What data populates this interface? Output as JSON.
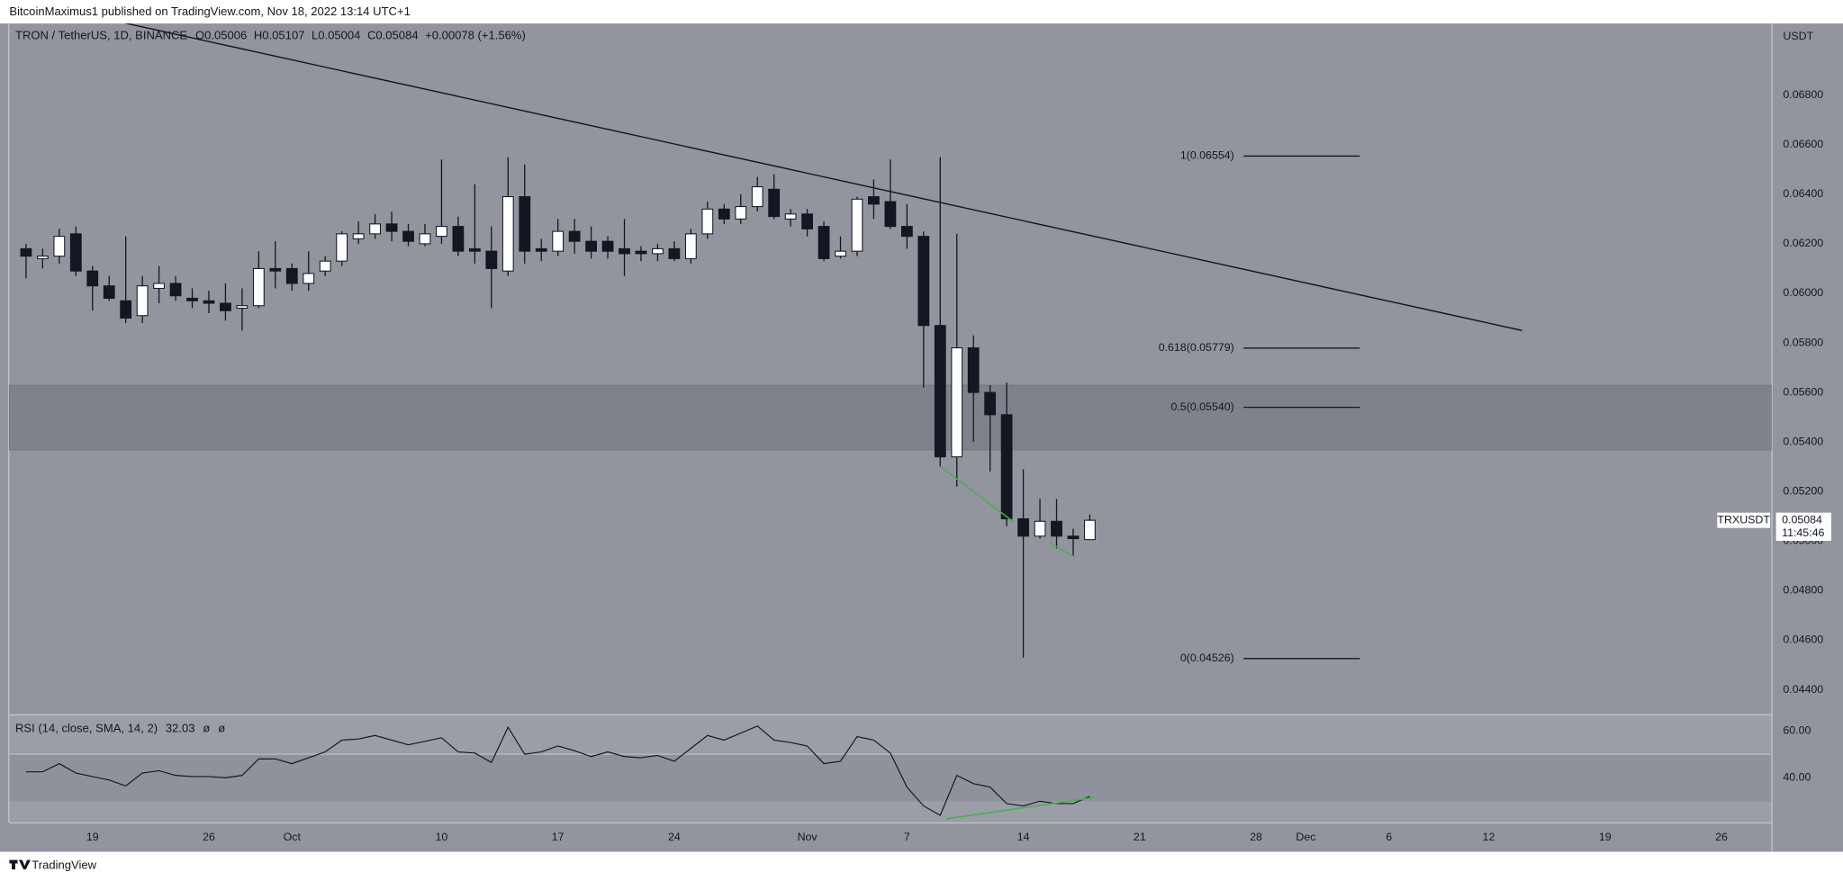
{
  "header": {
    "publisher": "BitcoinMaximus1 published on TradingView.com, Nov 18, 2022 13:14 UTC+1",
    "symbol": "TRON / TetherUS, 1D, BINANCE",
    "ohlc": [
      {
        "key": "O",
        "value": "0.05006"
      },
      {
        "key": "H",
        "value": "0.05107"
      },
      {
        "key": "L",
        "value": "0.05004"
      },
      {
        "key": "C",
        "value": "0.05084"
      }
    ],
    "change": "+0.00078 (+1.56%)",
    "currency": "USDT",
    "footer": "TradingView"
  },
  "chart_data": [
    {
      "type": "candlestick",
      "x": [
        "2022-09-15",
        "2022-09-16",
        "2022-09-17",
        "2022-09-18",
        "2022-09-19",
        "2022-09-20",
        "2022-09-21",
        "2022-09-22",
        "2022-09-23",
        "2022-09-24",
        "2022-09-25",
        "2022-09-26",
        "2022-09-27",
        "2022-09-28",
        "2022-09-29",
        "2022-09-30",
        "2022-10-01",
        "2022-10-02",
        "2022-10-03",
        "2022-10-04",
        "2022-10-05",
        "2022-10-06",
        "2022-10-07",
        "2022-10-08",
        "2022-10-09",
        "2022-10-10",
        "2022-10-11",
        "2022-10-12",
        "2022-10-13",
        "2022-10-14",
        "2022-10-15",
        "2022-10-16",
        "2022-10-17",
        "2022-10-18",
        "2022-10-19",
        "2022-10-20",
        "2022-10-21",
        "2022-10-22",
        "2022-10-23",
        "2022-10-24",
        "2022-10-25",
        "2022-10-26",
        "2022-10-27",
        "2022-10-28",
        "2022-10-29",
        "2022-10-30",
        "2022-10-31",
        "2022-11-01",
        "2022-11-02",
        "2022-11-03",
        "2022-11-04",
        "2022-11-05",
        "2022-11-06",
        "2022-11-07",
        "2022-11-08",
        "2022-11-09",
        "2022-11-10",
        "2022-11-11",
        "2022-11-12",
        "2022-11-13",
        "2022-11-14",
        "2022-11-15",
        "2022-11-16",
        "2022-11-17",
        "2022-11-18"
      ],
      "open": [
        0.0618,
        0.0614,
        0.0615,
        0.0624,
        0.0609,
        0.0603,
        0.0597,
        0.0591,
        0.0602,
        0.0604,
        0.0598,
        0.0597,
        0.0596,
        0.0594,
        0.0595,
        0.061,
        0.061,
        0.0604,
        0.0609,
        0.0613,
        0.0622,
        0.0624,
        0.0628,
        0.0625,
        0.062,
        0.0623,
        0.0627,
        0.0618,
        0.0617,
        0.0609,
        0.0639,
        0.0618,
        0.0617,
        0.0625,
        0.0621,
        0.0621,
        0.0618,
        0.0617,
        0.0616,
        0.0618,
        0.0614,
        0.0624,
        0.0634,
        0.063,
        0.0635,
        0.0642,
        0.063,
        0.0632,
        0.0627,
        0.0615,
        0.0617,
        0.0639,
        0.0637,
        0.0627,
        0.0623,
        0.0587,
        0.0534,
        0.0578,
        0.056,
        0.0551,
        0.0509,
        0.0502,
        0.0508,
        0.0502,
        0.05006
      ],
      "high": [
        0.062,
        0.0618,
        0.0626,
        0.0627,
        0.0611,
        0.0607,
        0.0623,
        0.0607,
        0.0611,
        0.0607,
        0.0602,
        0.0601,
        0.0604,
        0.0602,
        0.0617,
        0.0621,
        0.0612,
        0.0617,
        0.0615,
        0.0625,
        0.0629,
        0.0632,
        0.0633,
        0.0628,
        0.0628,
        0.0654,
        0.0631,
        0.0644,
        0.0627,
        0.0655,
        0.0652,
        0.0622,
        0.063,
        0.063,
        0.0627,
        0.0623,
        0.063,
        0.0619,
        0.062,
        0.0621,
        0.0626,
        0.0637,
        0.0636,
        0.064,
        0.0647,
        0.0648,
        0.0634,
        0.0634,
        0.0629,
        0.0623,
        0.0639,
        0.0646,
        0.0654,
        0.0636,
        0.0625,
        0.0655,
        0.0624,
        0.0583,
        0.0563,
        0.0564,
        0.0529,
        0.0517,
        0.0517,
        0.0505,
        0.05107
      ],
      "low": [
        0.0606,
        0.061,
        0.0612,
        0.0607,
        0.0593,
        0.0597,
        0.0588,
        0.0588,
        0.0596,
        0.0597,
        0.0594,
        0.0592,
        0.0589,
        0.0585,
        0.0594,
        0.0602,
        0.0601,
        0.0601,
        0.0607,
        0.0611,
        0.062,
        0.0622,
        0.0621,
        0.0619,
        0.0619,
        0.062,
        0.0615,
        0.0612,
        0.0594,
        0.0607,
        0.0612,
        0.0613,
        0.0615,
        0.0616,
        0.0614,
        0.0614,
        0.0607,
        0.0613,
        0.0613,
        0.0613,
        0.0612,
        0.0622,
        0.0628,
        0.0628,
        0.0633,
        0.063,
        0.0627,
        0.0623,
        0.0613,
        0.0614,
        0.0615,
        0.063,
        0.0626,
        0.0618,
        0.0562,
        0.053,
        0.0522,
        0.054,
        0.0528,
        0.0506,
        0.0453,
        0.0501,
        0.0497,
        0.0494,
        0.05004
      ],
      "close": [
        0.0615,
        0.0615,
        0.0623,
        0.0609,
        0.0603,
        0.0598,
        0.059,
        0.0603,
        0.0604,
        0.0599,
        0.0597,
        0.0596,
        0.0593,
        0.0595,
        0.061,
        0.0609,
        0.0604,
        0.0608,
        0.0613,
        0.0624,
        0.0624,
        0.0628,
        0.0625,
        0.0621,
        0.0624,
        0.0627,
        0.0617,
        0.0617,
        0.061,
        0.0639,
        0.0617,
        0.0617,
        0.0625,
        0.0621,
        0.0617,
        0.0617,
        0.0616,
        0.0616,
        0.0618,
        0.0614,
        0.0624,
        0.0634,
        0.063,
        0.0635,
        0.0643,
        0.0631,
        0.0632,
        0.0626,
        0.0614,
        0.0617,
        0.0638,
        0.0636,
        0.0627,
        0.0623,
        0.0587,
        0.0534,
        0.0578,
        0.056,
        0.0551,
        0.0509,
        0.0502,
        0.0508,
        0.0502,
        0.0501,
        0.05084
      ],
      "up_color": "#ffffff",
      "down_color": "#131722",
      "xlim": [
        "2022-09-14",
        "2022-12-29"
      ],
      "xticks": [
        {
          "value": "2022-09-19",
          "label": "19"
        },
        {
          "value": "2022-09-26",
          "label": "26"
        },
        {
          "value": "2022-10-01",
          "label": "Oct"
        },
        {
          "value": "2022-10-10",
          "label": "10"
        },
        {
          "value": "2022-10-17",
          "label": "17"
        },
        {
          "value": "2022-10-24",
          "label": "24"
        },
        {
          "value": "2022-11-01",
          "label": "Nov"
        },
        {
          "value": "2022-11-07",
          "label": "7"
        },
        {
          "value": "2022-11-14",
          "label": "14"
        },
        {
          "value": "2022-11-21",
          "label": "21"
        },
        {
          "value": "2022-11-28",
          "label": "28"
        },
        {
          "value": "2022-12-01",
          "label": "Dec"
        },
        {
          "value": "2022-12-06",
          "label": "6"
        },
        {
          "value": "2022-12-12",
          "label": "12"
        },
        {
          "value": "2022-12-19",
          "label": "19"
        },
        {
          "value": "2022-12-26",
          "label": "26"
        }
      ],
      "ylim": [
        0.04301,
        0.07089
      ],
      "yticks": [
        {
          "value": 0.044,
          "label": "0.04400"
        },
        {
          "value": 0.046,
          "label": "0.04600"
        },
        {
          "value": 0.048,
          "label": "0.04800"
        },
        {
          "value": 0.05,
          "label": "0.05000"
        },
        {
          "value": 0.052,
          "label": "0.05200"
        },
        {
          "value": 0.054,
          "label": "0.05400"
        },
        {
          "value": 0.056,
          "label": "0.05600"
        },
        {
          "value": 0.058,
          "label": "0.05800"
        },
        {
          "value": 0.06,
          "label": "0.06000"
        },
        {
          "value": 0.062,
          "label": "0.06200"
        },
        {
          "value": 0.064,
          "label": "0.06400"
        },
        {
          "value": 0.066,
          "label": "0.06600"
        },
        {
          "value": 0.068,
          "label": "0.06800"
        }
      ],
      "trendline": {
        "x": [
          "2022-09-21",
          "2022-12-14"
        ],
        "y": [
          0.0709,
          0.0585
        ]
      },
      "zone": [
        0.05368,
        0.05629
      ],
      "fib_levels": [
        {
          "label": "1(0.06554)",
          "value": 0.06554
        },
        {
          "label": "0.618(0.05779)",
          "value": 0.05779
        },
        {
          "label": "0.5(0.05540)",
          "value": 0.0554
        },
        {
          "label": "0(0.04526)",
          "value": 0.04526
        }
      ],
      "last_price": {
        "name": "TRXUSDT",
        "value": 0.05084,
        "countdown": "11:45:46"
      }
    },
    {
      "type": "line",
      "title": "RSI (14, close, SMA, 14, 2)",
      "extras": [
        "ø",
        "ø"
      ],
      "color": "#131722",
      "values": [
        42.5,
        42.5,
        46,
        42,
        40.5,
        39,
        36.5,
        42,
        43,
        41,
        40.5,
        40.5,
        40,
        41,
        48,
        48,
        46,
        48.5,
        51,
        56,
        56.5,
        58,
        56,
        54,
        55.5,
        57,
        51,
        50.5,
        46.5,
        61.5,
        50,
        51,
        53.5,
        51.5,
        49,
        51,
        49,
        48.5,
        49.5,
        47,
        52.5,
        58,
        56,
        59,
        62,
        56,
        55,
        53.5,
        46,
        47,
        57.5,
        56,
        50.5,
        36,
        28,
        24,
        41,
        37.5,
        36,
        29,
        28,
        30,
        29,
        29,
        32.03
      ],
      "ylim": [
        21,
        66.5
      ],
      "yticks": [
        {
          "value": 60,
          "label": "60.00"
        },
        {
          "value": 40,
          "label": "40.00"
        }
      ],
      "band": [
        30,
        50
      ]
    }
  ]
}
